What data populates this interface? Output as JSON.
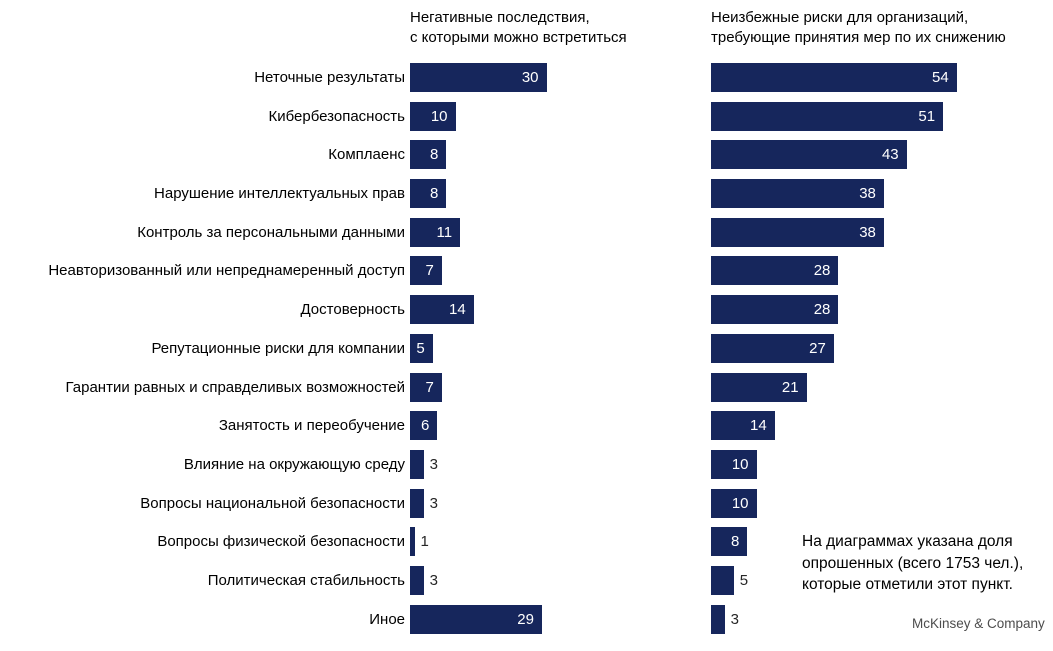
{
  "chart_data": {
    "type": "bar",
    "orientation": "horizontal",
    "title": "",
    "categories": [
      "Неточные результаты",
      "Кибербезопасность",
      "Комплаенс",
      "Нарушение интеллектуальных прав",
      "Контроль за персональными данными",
      "Неавторизованный или непреднамеренный доступ",
      "Достоверность",
      "Репутационные риски для компании",
      "Гарантии равных и справделивых возможностей",
      "Занятость и переобучение",
      "Влияние на окружающую среду",
      "Вопросы национальной безопасности",
      "Вопросы физической безопасности",
      "Политическая стабильность",
      "Иное"
    ],
    "series": [
      {
        "name": "Негативные последствия,\nс которыми можно встретиться",
        "values": [
          30,
          10,
          8,
          8,
          11,
          7,
          14,
          5,
          7,
          6,
          3,
          3,
          1,
          3,
          29
        ],
        "value_label_position": [
          "inside",
          "inside",
          "inside",
          "inside",
          "inside",
          "inside",
          "inside",
          "inside",
          "inside",
          "inside",
          "outside",
          "outside",
          "outside",
          "outside",
          "inside"
        ]
      },
      {
        "name": "Неизбежные риски для организаций,\nтребующие принятия мер по их снижению",
        "values": [
          54,
          51,
          43,
          38,
          38,
          28,
          28,
          27,
          21,
          14,
          10,
          10,
          8,
          5,
          3
        ],
        "value_label_position": [
          "inside",
          "inside",
          "inside",
          "inside",
          "inside",
          "inside",
          "inside",
          "inside",
          "inside",
          "inside",
          "inside",
          "inside",
          "inside",
          "outside",
          "outside"
        ]
      }
    ],
    "value_range": [
      0,
      57
    ],
    "grid": "off",
    "legend_position": "column-headers-top",
    "annotation": "На диаграммах указана доля опрошенных (всего 1753 чел.), которые отметили этот пункт.",
    "source": "McKinsey & Company",
    "colors": {
      "bar": "#16265C",
      "value_inside": "#FFFFFF",
      "value_outside": "#262626",
      "label": "#000000",
      "logo": "#4D4D4D"
    }
  }
}
